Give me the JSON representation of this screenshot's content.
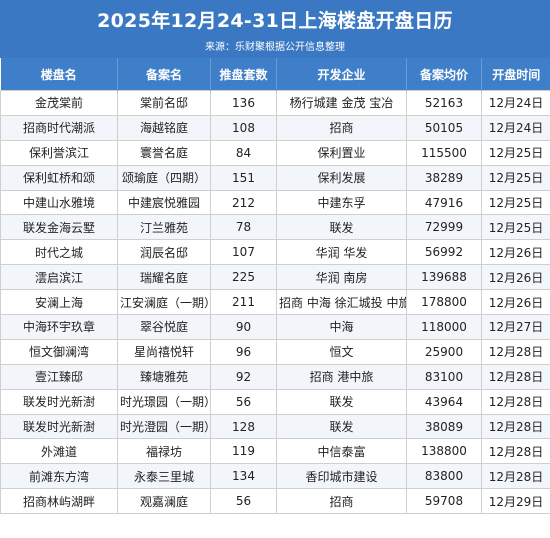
{
  "header": {
    "title": "2025年12月24-31日上海楼盘开盘日历",
    "source": "来源：乐财聚根据公开信息整理"
  },
  "table": {
    "columns": [
      "楼盘名",
      "备案名",
      "推盘套数",
      "开发企业",
      "备案均价",
      "开盘时间"
    ],
    "rows": [
      [
        "金茂棠前",
        "棠前名邸",
        "136",
        "杨行城建 金茂 宝冶",
        "52163",
        "12月24日"
      ],
      [
        "招商时代潮派",
        "海越铭庭",
        "108",
        "招商",
        "50105",
        "12月24日"
      ],
      [
        "保利誉滨江",
        "寰誉名庭",
        "84",
        "保利置业",
        "115500",
        "12月25日"
      ],
      [
        "保利虹桥和颂",
        "颂瑜庭（四期）",
        "151",
        "保利发展",
        "38289",
        "12月25日"
      ],
      [
        "中建山水雅境",
        "中建宸悦雅园",
        "212",
        "中建东孚",
        "47916",
        "12月25日"
      ],
      [
        "联发金海云墅",
        "汀兰雅苑",
        "78",
        "联发",
        "72999",
        "12月25日"
      ],
      [
        "时代之城",
        "润辰名邸",
        "107",
        "华润 华发",
        "56992",
        "12月26日"
      ],
      [
        "澐启滨江",
        "瑞耀名庭",
        "225",
        "华润 南房",
        "139688",
        "12月26日"
      ],
      [
        "安澜上海",
        "江安澜庭（一期）",
        "211",
        "招商 中海 徐汇城投 中旅",
        "178800",
        "12月26日"
      ],
      [
        "中海环宇玖章",
        "翠谷悦庭",
        "90",
        "中海",
        "118000",
        "12月27日"
      ],
      [
        "恒文御澜湾",
        "星尚禧悦轩",
        "96",
        "恒文",
        "25900",
        "12月28日"
      ],
      [
        "壹江臻邸",
        "臻塘雅苑",
        "92",
        "招商 港中旅",
        "83100",
        "12月28日"
      ],
      [
        "联发时光新澍",
        "时光璟园（一期）",
        "56",
        "联发",
        "43964",
        "12月28日"
      ],
      [
        "联发时光新澍",
        "时光澄园（一期）",
        "128",
        "联发",
        "38089",
        "12月28日"
      ],
      [
        "外滩道",
        "福禄坊",
        "119",
        "中信泰富",
        "138800",
        "12月28日"
      ],
      [
        "前滩东方湾",
        "永泰三里城",
        "134",
        "香印城市建设",
        "83800",
        "12月28日"
      ],
      [
        "招商林屿湖畔",
        "观嘉澜庭",
        "56",
        "招商",
        "59708",
        "12月29日"
      ]
    ]
  }
}
